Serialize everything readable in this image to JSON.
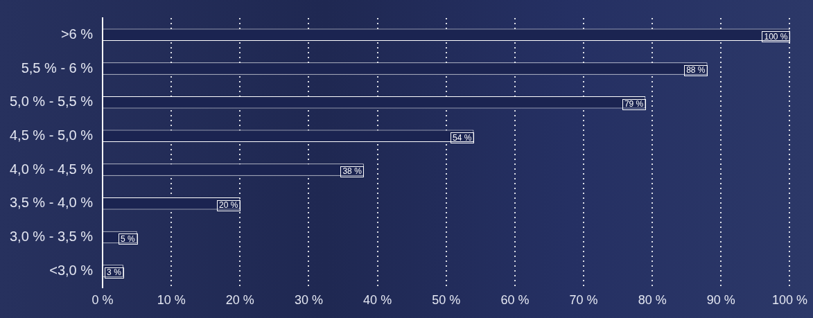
{
  "chart_data": {
    "type": "bar",
    "orientation": "horizontal",
    "categories": [
      ">6 %",
      "5,5 % - 6 %",
      "5,0 % - 5,5 %",
      "4,5 % - 5,0 %",
      "4,0 % - 4,5 %",
      "3,5 % - 4,0 %",
      "3,0 % - 3,5 %",
      "<3,0 %"
    ],
    "values": [
      100,
      88,
      79,
      54,
      38,
      20,
      5,
      3
    ],
    "value_labels": [
      "100 %",
      "88 %",
      "79 %",
      "54 %",
      "38 %",
      "20 %",
      "5 %",
      "3 %"
    ],
    "data_labels": true,
    "color": "#1b2451",
    "xlim": [
      0,
      100
    ],
    "xticks": [
      {
        "value": 0,
        "label": "0 %"
      },
      {
        "value": 10,
        "label": "10 %"
      },
      {
        "value": 20,
        "label": "20 %"
      },
      {
        "value": 30,
        "label": "30 %"
      },
      {
        "value": 40,
        "label": "40 %"
      },
      {
        "value": 50,
        "label": "50 %"
      },
      {
        "value": 60,
        "label": "60 %"
      },
      {
        "value": 70,
        "label": "70 %"
      },
      {
        "value": 80,
        "label": "80 %"
      },
      {
        "value": 90,
        "label": "90 %"
      },
      {
        "value": 100,
        "label": "100 %"
      }
    ],
    "grid": true
  }
}
